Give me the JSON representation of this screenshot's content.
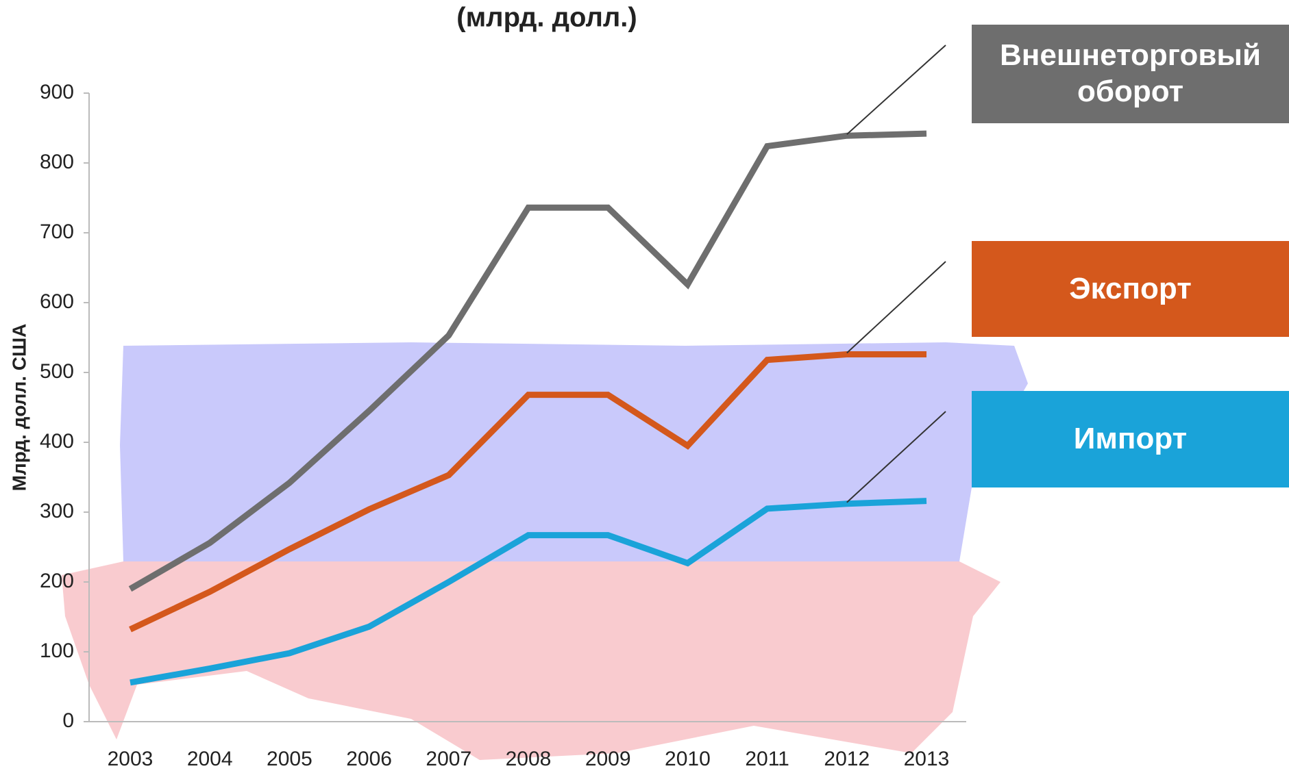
{
  "chart_data": {
    "type": "line",
    "title": "(млрд. долл.)",
    "ylabel": "Млрд. долл. США",
    "categories": [
      "2003",
      "2004",
      "2005",
      "2006",
      "2007",
      "2008",
      "2009",
      "2010",
      "2011",
      "2012",
      "2013"
    ],
    "series": [
      {
        "name": "Внешнеторговый оборот",
        "color": "#6e6e6e",
        "values": [
          190,
          256,
          342,
          445,
          553,
          736,
          736,
          626,
          824,
          839,
          842
        ]
      },
      {
        "name": "Экспорт",
        "color": "#d4581c",
        "values": [
          132,
          186,
          247,
          304,
          353,
          468,
          468,
          395,
          518,
          526,
          526
        ]
      },
      {
        "name": "Импорт",
        "color": "#1aa3d9",
        "values": [
          56,
          76,
          98,
          136,
          200,
          267,
          267,
          227,
          305,
          312,
          316
        ]
      }
    ],
    "ylim": [
      0,
      900
    ],
    "yticks": [
      0,
      100,
      200,
      300,
      400,
      500,
      600,
      700,
      800,
      900
    ]
  }
}
